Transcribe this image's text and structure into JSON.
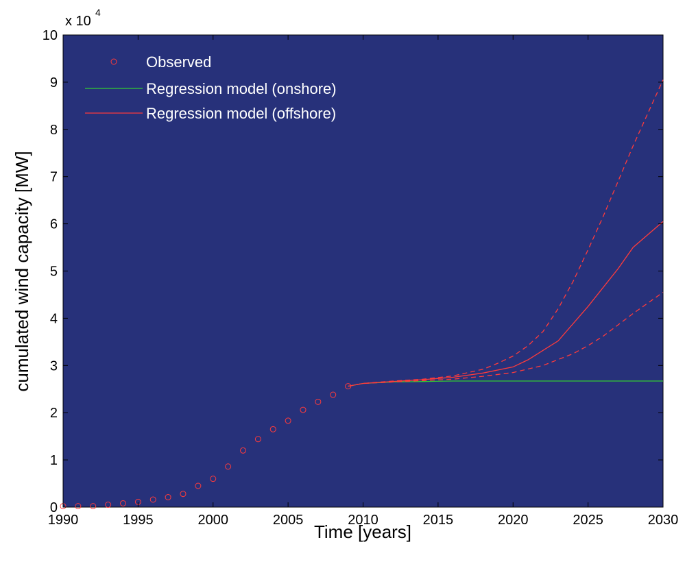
{
  "chart_data": {
    "type": "line",
    "xlabel": "Time [years]",
    "ylabel": "cumulated wind capacity [MW]",
    "xlim": [
      1990,
      2030
    ],
    "ylim": [
      0,
      10
    ],
    "y_multiplier_label": "x 10",
    "y_multiplier_exponent": "4",
    "x_ticks": [
      1990,
      1995,
      2000,
      2005,
      2010,
      2015,
      2020,
      2025,
      2030
    ],
    "y_ticks": [
      0,
      1,
      2,
      3,
      4,
      5,
      6,
      7,
      8,
      9,
      10
    ],
    "grid": false,
    "legend_position": "top-left",
    "plot_background": "#27317a",
    "series": [
      {
        "name": "Observed",
        "style": "markers",
        "color": "#ff3b3b",
        "x": [
          1990,
          1991,
          1992,
          1993,
          1994,
          1995,
          1996,
          1997,
          1998,
          1999,
          2000,
          2001,
          2002,
          2003,
          2004,
          2005,
          2006,
          2007,
          2008,
          2009
        ],
        "y": [
          0.02,
          0.02,
          0.02,
          0.05,
          0.08,
          0.11,
          0.16,
          0.21,
          0.28,
          0.45,
          0.6,
          0.86,
          1.2,
          1.44,
          1.65,
          1.83,
          2.06,
          2.23,
          2.38,
          2.56
        ]
      },
      {
        "name": "Regression model (onshore)",
        "style": "line",
        "color": "#33cc33",
        "x": [
          2009,
          2010,
          2012,
          2014,
          2016,
          2018,
          2020,
          2025,
          2030
        ],
        "y": [
          2.56,
          2.62,
          2.65,
          2.66,
          2.67,
          2.67,
          2.67,
          2.67,
          2.67
        ]
      },
      {
        "name": "Regression model (offshore)",
        "style": "line",
        "color": "#ff3b3b",
        "x": [
          2009,
          2010,
          2012,
          2014,
          2016,
          2018,
          2020,
          2021,
          2023,
          2025,
          2027,
          2028,
          2030
        ],
        "y": [
          2.56,
          2.62,
          2.66,
          2.7,
          2.75,
          2.84,
          2.97,
          3.12,
          3.52,
          4.25,
          5.05,
          5.5,
          6.05
        ]
      },
      {
        "name": "",
        "style": "dashed",
        "color": "#ff3b3b",
        "x": [
          2009,
          2010,
          2012,
          2014,
          2016,
          2018,
          2019,
          2020,
          2021,
          2022,
          2023,
          2024,
          2025,
          2026,
          2027,
          2028,
          2029,
          2030
        ],
        "y": [
          2.56,
          2.62,
          2.67,
          2.71,
          2.78,
          2.92,
          3.05,
          3.2,
          3.42,
          3.72,
          4.2,
          4.78,
          5.45,
          6.15,
          6.9,
          7.65,
          8.35,
          9.05
        ]
      },
      {
        "name": "",
        "style": "dashed",
        "color": "#ff3b3b",
        "x": [
          2009,
          2010,
          2012,
          2014,
          2016,
          2018,
          2020,
          2022,
          2024,
          2025,
          2026,
          2028,
          2030
        ],
        "y": [
          2.56,
          2.62,
          2.65,
          2.68,
          2.71,
          2.77,
          2.85,
          3.0,
          3.25,
          3.42,
          3.62,
          4.1,
          4.55
        ]
      }
    ],
    "legend": [
      {
        "label": "Observed",
        "marker": "circle",
        "color": "#ff3b3b"
      },
      {
        "label": "Regression model (onshore)",
        "marker": "line",
        "color": "#33cc33"
      },
      {
        "label": "Regression model (offshore)",
        "marker": "line",
        "color": "#ff3b3b"
      }
    ]
  }
}
